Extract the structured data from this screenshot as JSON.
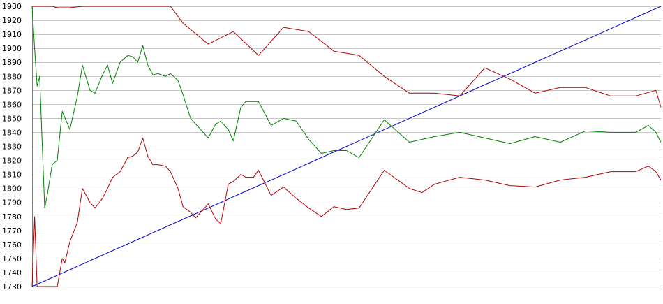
{
  "chart_data": {
    "type": "line",
    "title": "",
    "xlabel": "",
    "ylabel": "",
    "ylim": [
      1730,
      1930
    ],
    "yticks": [
      1730,
      1740,
      1750,
      1760,
      1770,
      1780,
      1790,
      1800,
      1810,
      1820,
      1830,
      1840,
      1850,
      1860,
      1870,
      1880,
      1890,
      1900,
      1910,
      1920,
      1930
    ],
    "grid": true,
    "legend": "none",
    "series": [
      {
        "color": "#0000cc",
        "x": [
          0,
          250
        ],
        "y": [
          1730,
          1930
        ]
      },
      {
        "color": "#b00000",
        "x": [
          0,
          2,
          4,
          8,
          10,
          15,
          20,
          25,
          30,
          35,
          40,
          45,
          50,
          55,
          60,
          70,
          80,
          90,
          100,
          110,
          120,
          130,
          140,
          150,
          160,
          170,
          180,
          190,
          200,
          210,
          220,
          230,
          240,
          248,
          250
        ],
        "y": [
          1930,
          1930,
          1930,
          1930,
          1929,
          1929,
          1930,
          1930,
          1930,
          1930,
          1930,
          1930,
          1930,
          1930,
          1918,
          1903,
          1912,
          1895,
          1915,
          1912,
          1898,
          1895,
          1880,
          1868,
          1868,
          1866,
          1886,
          1878,
          1868,
          1872,
          1872,
          1866,
          1866,
          1870,
          1858
        ]
      },
      {
        "color": "#008000",
        "x": [
          0,
          1,
          2,
          3,
          5,
          6,
          8,
          10,
          12,
          15,
          18,
          20,
          23,
          25,
          28,
          30,
          32,
          35,
          38,
          40,
          42,
          44,
          46,
          48,
          50,
          53,
          55,
          58,
          60,
          63,
          65,
          68,
          70,
          73,
          75,
          78,
          80,
          83,
          85,
          88,
          90,
          95,
          100,
          105,
          110,
          115,
          120,
          125,
          130,
          140,
          150,
          155,
          160,
          170,
          180,
          190,
          200,
          210,
          220,
          230,
          240,
          245,
          248,
          250
        ],
        "y": [
          1930,
          1900,
          1873,
          1880,
          1786,
          1795,
          1817,
          1820,
          1855,
          1842,
          1866,
          1888,
          1870,
          1868,
          1881,
          1888,
          1875,
          1890,
          1895,
          1894,
          1890,
          1902,
          1888,
          1881,
          1882,
          1880,
          1882,
          1877,
          1867,
          1850,
          1846,
          1840,
          1836,
          1846,
          1848,
          1842,
          1834,
          1858,
          1862,
          1862,
          1862,
          1845,
          1850,
          1848,
          1835,
          1825,
          1827,
          1827,
          1822,
          1849,
          1833,
          1835,
          1837,
          1840,
          1836,
          1832,
          1837,
          1833,
          1841,
          1840,
          1840,
          1845,
          1840,
          1833
        ]
      },
      {
        "color": "#b00000",
        "x": [
          0,
          1,
          2,
          3,
          5,
          8,
          10,
          12,
          13,
          15,
          18,
          20,
          23,
          25,
          28,
          30,
          32,
          35,
          38,
          40,
          42,
          44,
          46,
          48,
          50,
          53,
          55,
          58,
          60,
          63,
          65,
          68,
          70,
          73,
          75,
          78,
          80,
          83,
          85,
          88,
          90,
          95,
          100,
          105,
          110,
          115,
          120,
          125,
          130,
          140,
          150,
          155,
          160,
          170,
          180,
          190,
          200,
          210,
          220,
          230,
          240,
          245,
          248,
          250
        ],
        "y": [
          1730,
          1780,
          1730,
          1730,
          1730,
          1730,
          1730,
          1750,
          1747,
          1762,
          1776,
          1800,
          1790,
          1786,
          1793,
          1800,
          1808,
          1812,
          1822,
          1823,
          1826,
          1836,
          1823,
          1817,
          1817,
          1816,
          1812,
          1800,
          1787,
          1783,
          1779,
          1785,
          1789,
          1778,
          1775,
          1803,
          1805,
          1810,
          1808,
          1808,
          1813,
          1795,
          1801,
          1793,
          1786,
          1780,
          1787,
          1785,
          1786,
          1813,
          1800,
          1797,
          1803,
          1808,
          1806,
          1802,
          1801,
          1806,
          1808,
          1812,
          1812,
          1816,
          1812,
          1806
        ]
      }
    ]
  }
}
